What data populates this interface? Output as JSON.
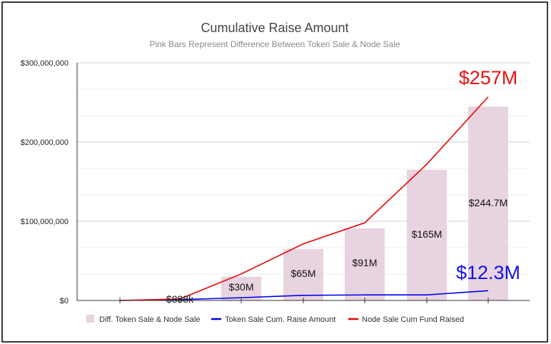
{
  "chart_data": {
    "type": "bar+line",
    "title": "Cumulative Raise Amount",
    "subtitle": "Pink Bars Represent Difference Between Token Sale & Node Sale",
    "ylim": [
      0,
      300000000
    ],
    "y_ticks": [
      0,
      100000000,
      200000000,
      300000000
    ],
    "y_tick_labels": [
      "$0",
      "$100,000,000",
      "$200,000,000",
      "$300,000,000"
    ],
    "grid": true,
    "categories": [
      "",
      "",
      "",
      "",
      "",
      "",
      ""
    ],
    "series": [
      {
        "name": "Diff. Token Sale & Node Sale",
        "kind": "bar",
        "color": "#e8d3e0",
        "values": [
          0,
          888000,
          30000000,
          65000000,
          91000000,
          165000000,
          244700000
        ],
        "labels": [
          "",
          "$888k",
          "$30M",
          "$65M",
          "$91M",
          "$165M",
          "$244.7M"
        ]
      },
      {
        "name": "Token Sale Cum. Raise Amount",
        "kind": "line",
        "color": "#0000ee",
        "values": [
          0,
          1000000,
          3500000,
          6500000,
          7000000,
          7000000,
          12300000
        ]
      },
      {
        "name": "Node Sale Cum Fund Raised",
        "kind": "line",
        "color": "#ee0000",
        "values": [
          0,
          1900000,
          33500000,
          71500000,
          98000000,
          172000000,
          257000000
        ]
      }
    ],
    "annotations": [
      {
        "text": "$257M",
        "color": "#ee1111",
        "series": 2
      },
      {
        "text": "$12.3M",
        "color": "#1111ee",
        "series": 1
      }
    ],
    "legend_position": "bottom"
  }
}
